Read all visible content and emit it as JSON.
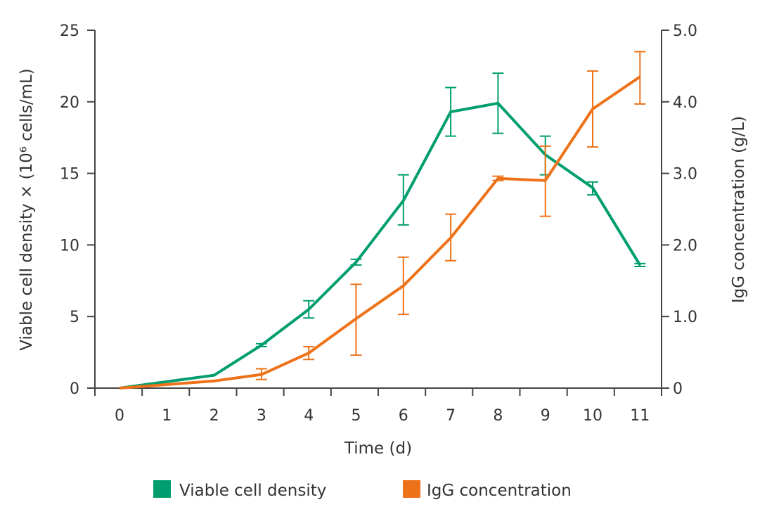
{
  "chart_data": {
    "type": "line",
    "xlabel": "Time (d)",
    "ylabel_left": "Viable cell density × (10⁶ cells/mL)",
    "ylabel_right": "IgG concentration (g/L)",
    "x_ticks": [
      "0",
      "1",
      "2",
      "3",
      "4",
      "5",
      "6",
      "7",
      "8",
      "9",
      "10",
      "11"
    ],
    "xlim": [
      0,
      11
    ],
    "ylim_left": [
      0,
      25
    ],
    "y_ticks_left": [
      "0",
      "5",
      "10",
      "15",
      "20",
      "25"
    ],
    "ylim_right": [
      0,
      5
    ],
    "y_ticks_right": [
      "0",
      "1.0",
      "2.0",
      "3.0",
      "4.0",
      "5.0"
    ],
    "grid": false,
    "legend_placement": "bottom",
    "series": [
      {
        "name": "Viable cell density",
        "axis": "left",
        "color": "#009e6e",
        "x": [
          0,
          2,
          3,
          4,
          5,
          6,
          7,
          8,
          9,
          10,
          11
        ],
        "y": [
          0,
          0.9,
          3.0,
          5.5,
          8.8,
          13.1,
          19.3,
          19.9,
          16.3,
          14.0,
          8.6
        ],
        "err_low": [
          null,
          null,
          2.9,
          4.9,
          8.6,
          11.4,
          17.6,
          17.8,
          14.9,
          13.5,
          8.5
        ],
        "err_high": [
          null,
          null,
          3.1,
          6.1,
          9.0,
          14.9,
          21.0,
          22.0,
          17.6,
          14.4,
          8.7
        ]
      },
      {
        "name": "IgG concentration",
        "axis": "right",
        "color": "#ee7219",
        "x": [
          0,
          2,
          3,
          4,
          5,
          6,
          7,
          8,
          9,
          10,
          11
        ],
        "y": [
          0,
          0.1,
          0.19,
          0.49,
          0.97,
          1.43,
          2.1,
          2.93,
          2.9,
          3.9,
          4.35
        ],
        "err_low": [
          null,
          null,
          0.12,
          0.4,
          0.46,
          1.03,
          1.78,
          2.9,
          2.4,
          3.37,
          3.97
        ],
        "err_high": [
          null,
          null,
          0.27,
          0.58,
          1.45,
          1.83,
          2.43,
          2.96,
          3.38,
          4.43,
          4.7
        ]
      }
    ]
  }
}
